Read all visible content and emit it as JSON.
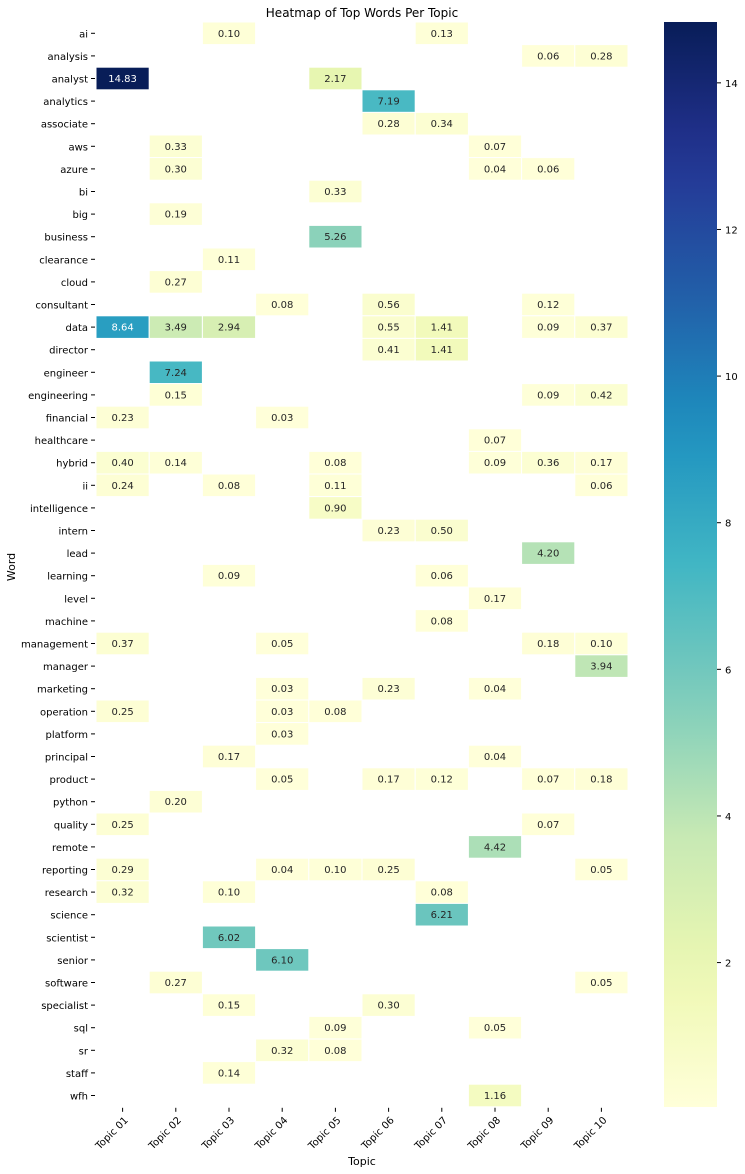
{
  "chart_data": {
    "type": "heatmap",
    "title": "Heatmap of Top Words Per Topic",
    "xlabel": "Topic",
    "ylabel": "Word",
    "x": [
      "Topic 01",
      "Topic 02",
      "Topic 03",
      "Topic 04",
      "Topic 05",
      "Topic 06",
      "Topic 07",
      "Topic 08",
      "Topic 09",
      "Topic 10"
    ],
    "y": [
      "ai",
      "analysis",
      "analyst",
      "analytics",
      "associate",
      "aws",
      "azure",
      "bi",
      "big",
      "business",
      "clearance",
      "cloud",
      "consultant",
      "data",
      "director",
      "engineer",
      "engineering",
      "financial",
      "healthcare",
      "hybrid",
      "ii",
      "intelligence",
      "intern",
      "lead",
      "learning",
      "level",
      "machine",
      "management",
      "manager",
      "marketing",
      "operation",
      "platform",
      "principal",
      "product",
      "python",
      "quality",
      "remote",
      "reporting",
      "research",
      "science",
      "scientist",
      "senior",
      "software",
      "specialist",
      "sql",
      "sr",
      "staff",
      "wfh"
    ],
    "values": [
      [
        null,
        null,
        0.1,
        null,
        null,
        null,
        0.13,
        null,
        null,
        null
      ],
      [
        null,
        null,
        null,
        null,
        null,
        null,
        null,
        null,
        0.06,
        0.28
      ],
      [
        14.83,
        null,
        null,
        null,
        2.17,
        null,
        null,
        null,
        null,
        null
      ],
      [
        null,
        null,
        null,
        null,
        null,
        7.19,
        null,
        null,
        null,
        null
      ],
      [
        null,
        null,
        null,
        null,
        null,
        0.28,
        0.34,
        null,
        null,
        null
      ],
      [
        null,
        0.33,
        null,
        null,
        null,
        null,
        null,
        0.07,
        null,
        null
      ],
      [
        null,
        0.3,
        null,
        null,
        null,
        null,
        null,
        0.04,
        0.06,
        null
      ],
      [
        null,
        null,
        null,
        null,
        0.33,
        null,
        null,
        null,
        null,
        null
      ],
      [
        null,
        0.19,
        null,
        null,
        null,
        null,
        null,
        null,
        null,
        null
      ],
      [
        null,
        null,
        null,
        null,
        5.26,
        null,
        null,
        null,
        null,
        null
      ],
      [
        null,
        null,
        0.11,
        null,
        null,
        null,
        null,
        null,
        null,
        null
      ],
      [
        null,
        0.27,
        null,
        null,
        null,
        null,
        null,
        null,
        null,
        null
      ],
      [
        null,
        null,
        null,
        0.08,
        null,
        0.56,
        null,
        null,
        0.12,
        null
      ],
      [
        8.64,
        3.49,
        2.94,
        null,
        null,
        0.55,
        1.41,
        null,
        0.09,
        0.37
      ],
      [
        null,
        null,
        null,
        null,
        null,
        0.41,
        1.41,
        null,
        null,
        null
      ],
      [
        null,
        7.24,
        null,
        null,
        null,
        null,
        null,
        null,
        null,
        null
      ],
      [
        null,
        0.15,
        null,
        null,
        null,
        null,
        null,
        null,
        0.09,
        0.42
      ],
      [
        0.23,
        null,
        null,
        0.03,
        null,
        null,
        null,
        null,
        null,
        null
      ],
      [
        null,
        null,
        null,
        null,
        null,
        null,
        null,
        0.07,
        null,
        null
      ],
      [
        0.4,
        0.14,
        null,
        null,
        0.08,
        null,
        null,
        0.09,
        0.36,
        0.17
      ],
      [
        0.24,
        null,
        0.08,
        null,
        0.11,
        null,
        null,
        null,
        null,
        0.06
      ],
      [
        null,
        null,
        null,
        null,
        0.9,
        null,
        null,
        null,
        null,
        null
      ],
      [
        null,
        null,
        null,
        null,
        null,
        0.23,
        0.5,
        null,
        null,
        null
      ],
      [
        null,
        null,
        null,
        null,
        null,
        null,
        null,
        null,
        4.2,
        null
      ],
      [
        null,
        null,
        0.09,
        null,
        null,
        null,
        0.06,
        null,
        null,
        null
      ],
      [
        null,
        null,
        null,
        null,
        null,
        null,
        null,
        0.17,
        null,
        null
      ],
      [
        null,
        null,
        null,
        null,
        null,
        null,
        0.08,
        null,
        null,
        null
      ],
      [
        0.37,
        null,
        null,
        0.05,
        null,
        null,
        null,
        null,
        0.18,
        0.1
      ],
      [
        null,
        null,
        null,
        null,
        null,
        null,
        null,
        null,
        null,
        3.94
      ],
      [
        null,
        null,
        null,
        0.03,
        null,
        0.23,
        null,
        0.04,
        null,
        null
      ],
      [
        0.25,
        null,
        null,
        0.03,
        0.08,
        null,
        null,
        null,
        null,
        null
      ],
      [
        null,
        null,
        null,
        0.03,
        null,
        null,
        null,
        null,
        null,
        null
      ],
      [
        null,
        null,
        0.17,
        null,
        null,
        null,
        null,
        0.04,
        null,
        null
      ],
      [
        null,
        null,
        null,
        0.05,
        null,
        0.17,
        0.12,
        null,
        0.07,
        0.18
      ],
      [
        null,
        0.2,
        null,
        null,
        null,
        null,
        null,
        null,
        null,
        null
      ],
      [
        0.25,
        null,
        null,
        null,
        null,
        null,
        null,
        null,
        0.07,
        null
      ],
      [
        null,
        null,
        null,
        null,
        null,
        null,
        null,
        4.42,
        null,
        null
      ],
      [
        0.29,
        null,
        null,
        0.04,
        0.1,
        0.25,
        null,
        null,
        null,
        0.05
      ],
      [
        0.32,
        null,
        0.1,
        null,
        null,
        null,
        0.08,
        null,
        null,
        null
      ],
      [
        null,
        null,
        null,
        null,
        null,
        null,
        6.21,
        null,
        null,
        null
      ],
      [
        null,
        null,
        6.02,
        null,
        null,
        null,
        null,
        null,
        null,
        null
      ],
      [
        null,
        null,
        null,
        6.1,
        null,
        null,
        null,
        null,
        null,
        null
      ],
      [
        null,
        0.27,
        null,
        null,
        null,
        null,
        null,
        null,
        null,
        0.05
      ],
      [
        null,
        null,
        0.15,
        null,
        null,
        0.3,
        null,
        null,
        null,
        null
      ],
      [
        null,
        null,
        null,
        null,
        0.09,
        null,
        null,
        0.05,
        null,
        null
      ],
      [
        null,
        null,
        null,
        0.32,
        0.08,
        null,
        null,
        null,
        null,
        null
      ],
      [
        null,
        null,
        0.14,
        null,
        null,
        null,
        null,
        null,
        null,
        null
      ],
      [
        null,
        null,
        null,
        null,
        null,
        null,
        null,
        1.16,
        null,
        null
      ]
    ],
    "colorbar": {
      "colormap": "YlGnBu",
      "range": [
        0.03,
        14.83
      ],
      "ticks": [
        2,
        4,
        6,
        8,
        10,
        12,
        14
      ]
    }
  }
}
